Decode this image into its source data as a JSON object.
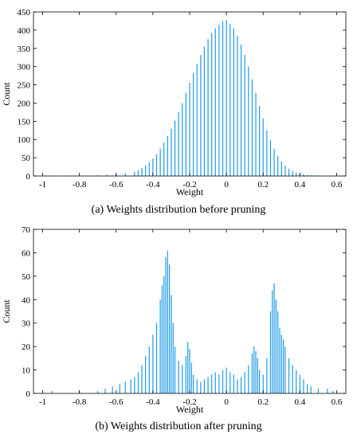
{
  "chart_data": [
    {
      "type": "bar",
      "caption": "(a)  Weights distribution before pruning",
      "xlabel": "Weight",
      "ylabel": "Count",
      "xlim": [
        -1.05,
        0.65
      ],
      "ylim": [
        0,
        450
      ],
      "xticks": [
        -1,
        -0.8,
        -0.6,
        -0.4,
        -0.2,
        0,
        0.2,
        0.4,
        0.6
      ],
      "yticks": [
        0,
        50,
        100,
        150,
        200,
        250,
        300,
        350,
        400,
        450
      ],
      "color": "#1e9be8",
      "bin_width": 0.005,
      "x": [
        -0.95,
        -0.9,
        -0.85,
        -0.8,
        -0.75,
        -0.7,
        -0.65,
        -0.6,
        -0.55,
        -0.5,
        -0.48,
        -0.46,
        -0.44,
        -0.42,
        -0.4,
        -0.38,
        -0.36,
        -0.34,
        -0.32,
        -0.3,
        -0.28,
        -0.26,
        -0.24,
        -0.22,
        -0.2,
        -0.18,
        -0.16,
        -0.14,
        -0.12,
        -0.1,
        -0.08,
        -0.06,
        -0.04,
        -0.02,
        0,
        0.02,
        0.04,
        0.06,
        0.08,
        0.1,
        0.12,
        0.14,
        0.16,
        0.18,
        0.2,
        0.22,
        0.24,
        0.26,
        0.28,
        0.3,
        0.32,
        0.34,
        0.36,
        0.38,
        0.4,
        0.42,
        0.44,
        0.46,
        0.48,
        0.5,
        0.55,
        0.58
      ],
      "values": [
        1,
        1,
        1,
        1,
        1,
        2,
        3,
        5,
        8,
        12,
        16,
        22,
        30,
        38,
        48,
        60,
        75,
        92,
        110,
        130,
        152,
        175,
        200,
        228,
        255,
        282,
        308,
        332,
        355,
        375,
        392,
        405,
        415,
        425,
        428,
        418,
        405,
        385,
        360,
        332,
        300,
        265,
        228,
        192,
        158,
        125,
        98,
        75,
        55,
        40,
        28,
        20,
        14,
        10,
        7,
        5,
        3,
        2,
        2,
        1,
        1,
        1
      ]
    },
    {
      "type": "bar",
      "caption": "(b)  Weights distribution after pruning",
      "xlabel": "Weight",
      "ylabel": "Count",
      "xlim": [
        -1.05,
        0.65
      ],
      "ylim": [
        0,
        70
      ],
      "xticks": [
        -1,
        -0.8,
        -0.6,
        -0.4,
        -0.2,
        0,
        0.2,
        0.4,
        0.6
      ],
      "yticks": [
        0,
        10,
        20,
        30,
        40,
        50,
        60,
        70
      ],
      "color": "#1e9be8",
      "bin_width": 0.005,
      "x": [
        -0.95,
        -0.8,
        -0.7,
        -0.66,
        -0.62,
        -0.58,
        -0.55,
        -0.52,
        -0.5,
        -0.48,
        -0.46,
        -0.44,
        -0.42,
        -0.4,
        -0.38,
        -0.36,
        -0.35,
        -0.34,
        -0.33,
        -0.32,
        -0.31,
        -0.3,
        -0.29,
        -0.28,
        -0.26,
        -0.24,
        -0.22,
        -0.21,
        -0.2,
        -0.19,
        -0.18,
        -0.16,
        -0.14,
        -0.12,
        -0.1,
        -0.08,
        -0.06,
        -0.04,
        -0.02,
        0,
        0.02,
        0.04,
        0.06,
        0.08,
        0.1,
        0.12,
        0.14,
        0.15,
        0.16,
        0.17,
        0.18,
        0.2,
        0.22,
        0.24,
        0.25,
        0.26,
        0.27,
        0.28,
        0.29,
        0.3,
        0.31,
        0.32,
        0.34,
        0.36,
        0.38,
        0.4,
        0.42,
        0.44,
        0.46,
        0.5,
        0.55,
        0.58
      ],
      "values": [
        1,
        1,
        1,
        2,
        3,
        4,
        5,
        6,
        7,
        9,
        12,
        16,
        20,
        25,
        30,
        40,
        46,
        50,
        58,
        61,
        55,
        42,
        30,
        20,
        14,
        12,
        16,
        22,
        19,
        13,
        8,
        6,
        5,
        6,
        7,
        8,
        9,
        8,
        10,
        11,
        9,
        8,
        6,
        7,
        9,
        12,
        17,
        20,
        18,
        15,
        10,
        8,
        15,
        35,
        44,
        47,
        40,
        35,
        28,
        25,
        23,
        20,
        15,
        12,
        10,
        8,
        6,
        4,
        3,
        2,
        2,
        1
      ]
    }
  ]
}
